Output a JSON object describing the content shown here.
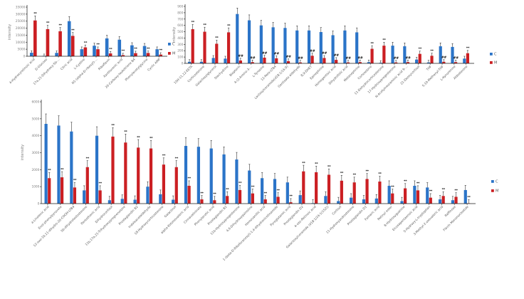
{
  "page": {
    "background": "#ffffff"
  },
  "colors": {
    "c_series": "#2b74c8",
    "m_series": "#cb1f23",
    "axis": "#1a1a1a",
    "tick_text": "#808080",
    "category_text": "#595959",
    "marker_text": "#111111"
  },
  "legend": {
    "c_label": "C",
    "m_label": "M"
  },
  "chart_data": [
    {
      "id": "chart-top-left",
      "type": "bar",
      "title": "",
      "ylabel": "intensity",
      "xlabel": "",
      "ylim": [
        0,
        35000
      ],
      "ystep": 5000,
      "grid": false,
      "legend_position": "right",
      "error_bars": "estimated, frac = 0.035*ymax + 0.08*value",
      "categories": [
        "4-Hydroxyretinoic acid",
        "D-Glucose",
        "17a,21-Dihydroxy-5b-...",
        "Citric acid",
        "L-Cystine",
        "N1-(alpha-D-ribosyl)-...",
        "Riboflavin",
        "Xanthurenic acid",
        "20-Carboxy-leukotriene B4",
        "Phenylacetylglycine",
        "Cyclic AMP"
      ],
      "series": [
        {
          "name": "C",
          "values": [
            2500,
            300,
            2400,
            25000,
            5000,
            7500,
            12700,
            11800,
            7800,
            7300,
            5000
          ]
        },
        {
          "name": "M",
          "values": [
            25500,
            19300,
            17800,
            14500,
            6300,
            5000,
            2000,
            800,
            2200,
            2300,
            1200
          ]
        }
      ],
      "sig_markers": [
        "**",
        "**",
        "**",
        "**",
        "**",
        "**",
        "**",
        "**",
        "**",
        "**",
        "**"
      ]
    },
    {
      "id": "chart-top-right",
      "type": "bar",
      "title": "",
      "ylabel": "intensity",
      "xlabel": "",
      "ylim": [
        0,
        900
      ],
      "ystep": 100,
      "grid": false,
      "legend_position": "right",
      "error_bars": "estimated, frac = 0.035*ymax + 0.08*value",
      "categories": [
        "15H-11,12-EETA",
        "Corticosterone",
        "Galactosylglycerol",
        "Stachydrine",
        "Biopterin",
        "4-(2-Amino-3-...",
        "L-Tyrosine",
        "12-Keto-LTB4",
        "Lactosylceramide(d18:1/16:0)",
        "Gentisate aldehyde",
        "8,9-DHET",
        "Epinephrine",
        "Homogentisic acid",
        "Dihydrofolic acid",
        "Metanephrine",
        "Cortexolone",
        "11-Dehydrocorticosterone",
        "17-Hydroxyprogesterone",
        "N-Acetylneuraminic acid 9-...",
        "21-Deoxycortisol",
        "THF",
        "5,10-Methenyl-THF",
        "L-Kynurenine",
        "Aldosterone"
      ],
      "series": [
        {
          "name": "C",
          "values": [
            25,
            25,
            85,
            75,
            780,
            680,
            600,
            570,
            560,
            520,
            520,
            495,
            445,
            520,
            490,
            20,
            10,
            280,
            270,
            60,
            15,
            270,
            260,
            75
          ]
        },
        {
          "name": "M",
          "values": [
            540,
            500,
            310,
            490,
            45,
            20,
            90,
            80,
            35,
            15,
            120,
            85,
            55,
            15,
            20,
            230,
            280,
            15,
            20,
            150,
            120,
            25,
            20,
            160
          ]
        }
      ],
      "sig_markers": [
        "**",
        "**",
        "**",
        "**",
        "##",
        "##",
        "##",
        "##",
        "##",
        "##",
        "##",
        "##",
        "##",
        "##",
        "##",
        "**",
        "**",
        "##",
        "##",
        "**",
        "**",
        "##",
        "##",
        "**"
      ]
    },
    {
      "id": "chart-bottom",
      "type": "bar",
      "title": "",
      "ylabel": "intensity",
      "xlabel": "",
      "ylim": [
        0,
        6000
      ],
      "ystep": 1000,
      "grid": false,
      "legend_position": "right",
      "error_bars": "estimated, frac = 0.035*ymax + 0.08*value",
      "categories": [
        "a-Linolenic acid",
        "Enol-phenylpyruvate",
        "12-oxo-10,11-dihydro-20-COOH-LTB4",
        "5b-dihydrotestosterone",
        "Pantothenic acid",
        "Dihydrocortisol",
        "11b,17a,21-Trihydroxypregnenolone",
        "Prostaglandin B2",
        "Indoleacetaldehyde",
        "18-Hydroxycorticosterone",
        "Galactinol",
        "alpha-Ketoisovaleric acid",
        "Cinnavalininate",
        "Phenylacetic acid",
        "Prostaglandin B1",
        "11b-Hydroxyprogesterone",
        "4,6-Dihydroxyquinoline",
        "Homovanillic acid",
        "1-(beta-D-Ribofuranosyl)-1,4-dihydronicotinamide",
        "Pyroglutamic acid",
        "Prostaglandin D2",
        "4-oxo-Retinoic acid",
        "Galactosylceramide (d18:1/24:1(15Z))",
        "Cortisol",
        "11-Hydroxyandrosterone",
        "Prostaglandin D1",
        "Fumaric acid",
        "Retinyl ester",
        "8-Hydroxyguanine",
        "Eicosapentaenoic acid",
        "5-Hydroxy-L-tryptophan",
        "3-Methyl-2-oxovaleric acid",
        "Raffinose",
        "Flavin Mononucleotide"
      ],
      "series": [
        {
          "name": "C",
          "values": [
            4700,
            4600,
            4250,
            780,
            4000,
            200,
            280,
            230,
            1000,
            550,
            230,
            3400,
            3350,
            3250,
            2900,
            2600,
            1950,
            1500,
            1450,
            1250,
            500,
            30,
            450,
            150,
            350,
            250,
            300,
            1050,
            150,
            1050,
            950,
            250,
            200,
            800
          ]
        },
        {
          "name": "M",
          "values": [
            1500,
            1550,
            950,
            2150,
            780,
            3950,
            3600,
            3300,
            3250,
            2300,
            2150,
            1050,
            250,
            200,
            450,
            800,
            600,
            250,
            400,
            80,
            1900,
            1850,
            1700,
            1350,
            1250,
            1450,
            1300,
            600,
            900,
            780,
            350,
            450,
            400,
            20
          ]
        }
      ],
      "sig_markers": [
        "**",
        "**",
        "**",
        "**",
        "**",
        "**",
        "**",
        "**",
        "**",
        "**",
        "**",
        "**",
        "**",
        "**",
        "**",
        "**",
        "**",
        "**",
        "**",
        "**",
        "**",
        "**",
        "**",
        "**",
        "**",
        "**",
        "**",
        "**",
        "**",
        "**",
        "**",
        "**",
        "**",
        "**"
      ]
    }
  ]
}
